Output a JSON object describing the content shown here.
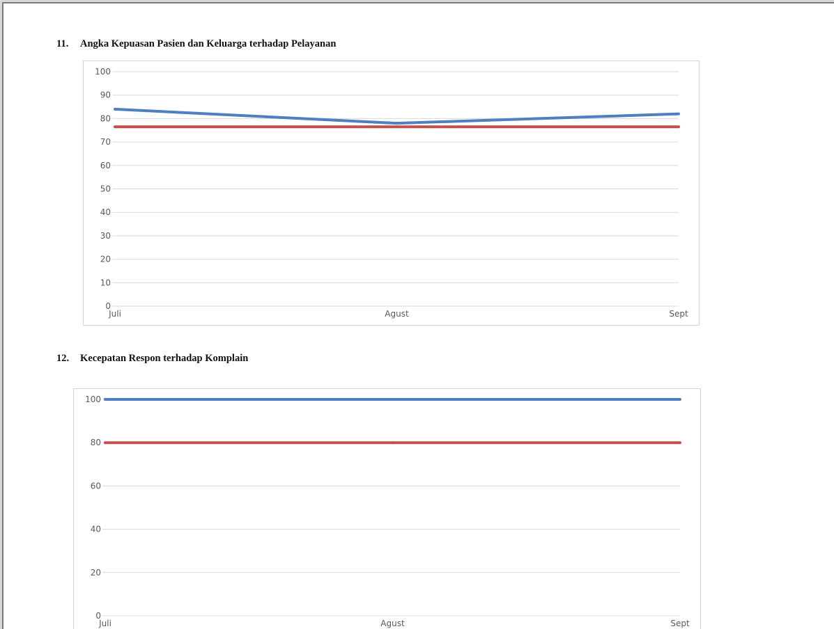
{
  "sections": [
    {
      "number": "11.",
      "title": "Angka Kepuasan Pasien dan Keluarga terhadap Pelayanan"
    },
    {
      "number": "12.",
      "title": "Kecepatan Respon  terhadap Komplain"
    }
  ],
  "colors": {
    "series_blue": "#4f7fbf",
    "series_red": "#c0504d",
    "grid": "#d9d9d9",
    "axis_text": "#595959"
  },
  "chart_data": [
    {
      "type": "line",
      "categories": [
        "Juli",
        "Agust",
        "Sept"
      ],
      "series": [
        {
          "values": [
            84,
            78,
            82
          ],
          "color": "#4f7fbf"
        },
        {
          "values": [
            76.5,
            76.5,
            76.5
          ],
          "color": "#c0504d"
        }
      ],
      "ylim": [
        0,
        100
      ],
      "yticks": [
        0,
        10,
        20,
        30,
        40,
        50,
        60,
        70,
        80,
        90,
        100
      ],
      "grid": true,
      "legend": "none"
    },
    {
      "type": "line",
      "categories": [
        "Juli",
        "Agust",
        "Sept"
      ],
      "series": [
        {
          "values": [
            100,
            100,
            100
          ],
          "color": "#4f7fbf"
        },
        {
          "values": [
            80,
            80,
            80
          ],
          "color": "#c0504d"
        }
      ],
      "ylim": [
        0,
        100
      ],
      "yticks": [
        0,
        20,
        40,
        60,
        80,
        100
      ],
      "grid": true,
      "legend": "none"
    }
  ]
}
